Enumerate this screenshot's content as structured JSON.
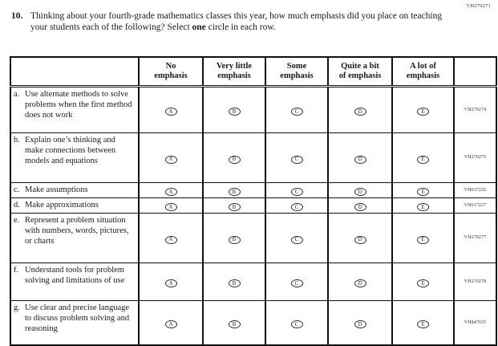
{
  "page_code": "VH270271",
  "question": {
    "number": "10.",
    "text_part1": "Thinking about your fourth-grade mathematics classes this year, how much emphasis did you place on teaching your students each of the following? Select ",
    "bold_word": "one",
    "text_part2": " circle in each row."
  },
  "table": {
    "columns": [
      {
        "line1": "No",
        "line2": "emphasis"
      },
      {
        "line1": "Very little",
        "line2": "emphasis"
      },
      {
        "line1": "Some",
        "line2": "emphasis"
      },
      {
        "line1": "Quite a bit",
        "line2": "of emphasis"
      },
      {
        "line1": "A lot of",
        "line2": "emphasis"
      }
    ],
    "bubble_letters": [
      "A",
      "B",
      "C",
      "D",
      "E"
    ],
    "rows": [
      {
        "letter": "a.",
        "label": "Use alternate methods to solve problems when the first method does not work",
        "code": "VH270274"
      },
      {
        "letter": "b.",
        "label": "Explain one’s thinking and make connections between models and equations",
        "code": "VH270275"
      },
      {
        "letter": "c.",
        "label": "Make assumptions",
        "code": "VH617226"
      },
      {
        "letter": "d.",
        "label": "Make approximations",
        "code": "VH617227"
      },
      {
        "letter": "e.",
        "label": "Represent a problem situation with numbers, words, pictures, or charts",
        "code": "VH270277"
      },
      {
        "letter": "f.",
        "label": "Understand tools for problem solving and limitations of use",
        "code": "VH270278"
      },
      {
        "letter": "g.",
        "label": "Use clear and precise language to discuss problem solving and reasoning",
        "code": "VH847655"
      }
    ]
  }
}
